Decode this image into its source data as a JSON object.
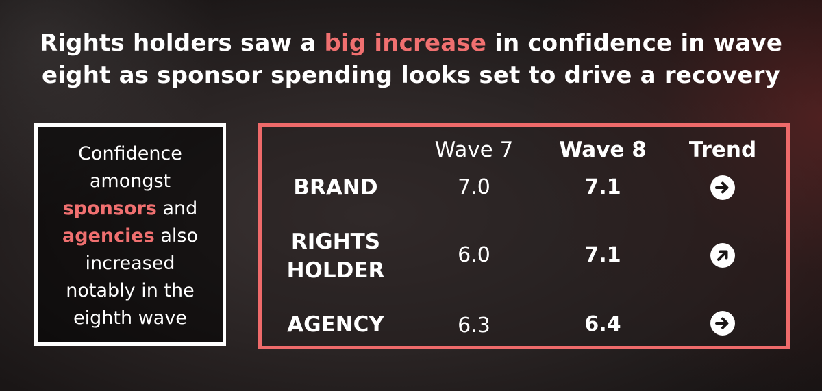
{
  "headline": {
    "part1": "Rights holders saw a ",
    "highlight": "big increase",
    "part2": " in confidence in wave",
    "line2": "eight as sponsor spending looks set to drive a recovery"
  },
  "side_note": {
    "line1": "Confidence",
    "line2": "amongst",
    "hl1": "sponsors",
    "after_hl1": " and",
    "hl2": "agencies",
    "after_hl2": " also",
    "line5": "increased",
    "line6": "notably in the",
    "line7": "eighth wave"
  },
  "table": {
    "headers": {
      "wave7": "Wave 7",
      "wave8": "Wave 8",
      "trend": "Trend"
    },
    "rows": [
      {
        "label_line1": "BRAND",
        "label_line2": "",
        "wave7": "7.0",
        "wave8": "7.1",
        "trend_icon": "arrow-right-icon"
      },
      {
        "label_line1": "RIGHTS",
        "label_line2": "HOLDER",
        "wave7": "6.0",
        "wave8": "7.1",
        "trend_icon": "arrow-up-right-icon"
      },
      {
        "label_line1": "AGENCY",
        "label_line2": "",
        "wave7": "6.3",
        "wave8": "6.4",
        "trend_icon": "arrow-right-icon"
      }
    ]
  },
  "colors": {
    "accent": "#f07070",
    "table_border": "#ee6a6a",
    "side_border": "#ffffff"
  }
}
